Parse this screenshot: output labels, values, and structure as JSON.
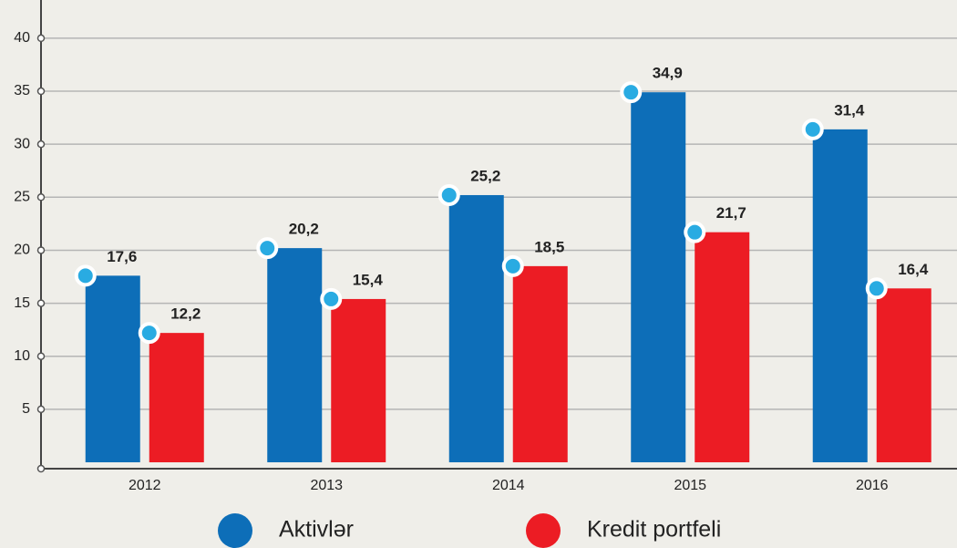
{
  "chart_data": {
    "type": "bar",
    "categories": [
      "2012",
      "2013",
      "2014",
      "2015",
      "2016"
    ],
    "series": [
      {
        "name": "Aktivlər",
        "color": "#0d6eb8",
        "values": [
          17.6,
          20.2,
          25.2,
          34.9,
          31.4
        ],
        "value_labels": [
          "17,6",
          "20,2",
          "25,2",
          "34,9",
          "31,4"
        ]
      },
      {
        "name": "Kredit portfeli",
        "color": "#ec1c24",
        "values": [
          12.2,
          15.4,
          18.5,
          21.7,
          16.4
        ],
        "value_labels": [
          "12,2",
          "15,4",
          "18,5",
          "21,7",
          "16,4"
        ]
      }
    ],
    "ylim": [
      0,
      43
    ],
    "yticks": [
      5,
      10,
      15,
      20,
      25,
      30,
      35,
      40
    ],
    "grid": true,
    "legend": "bottom"
  }
}
